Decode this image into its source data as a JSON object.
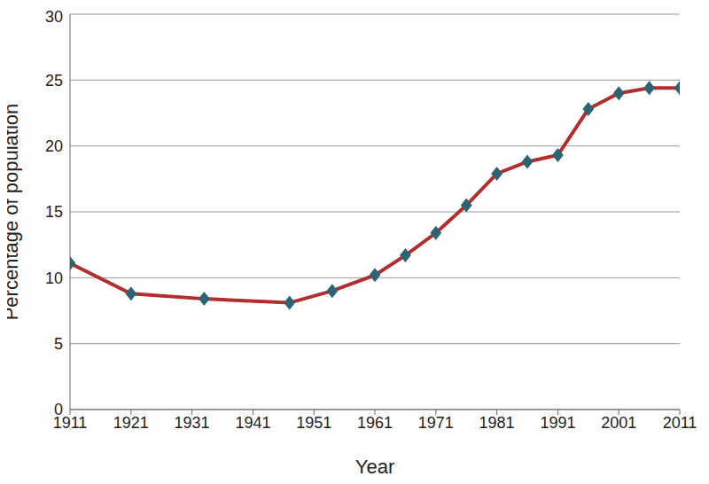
{
  "chart_data": {
    "type": "line",
    "x_label": "Year",
    "y_label": "Percentage of population",
    "x": [
      1911,
      1921,
      1933,
      1947,
      1954,
      1961,
      1966,
      1971,
      1976,
      1981,
      1986,
      1991,
      1996,
      2001,
      2006,
      2011
    ],
    "values": [
      11.1,
      8.8,
      8.4,
      8.1,
      9.0,
      10.2,
      11.7,
      13.4,
      15.5,
      17.9,
      18.8,
      19.3,
      22.8,
      24.0,
      24.4,
      24.4
    ],
    "color": "#b22d2d",
    "marker": "diamond",
    "marker_color": "#2d6373",
    "xlim": [
      1911,
      2011
    ],
    "xticks": [
      1911,
      1921,
      1931,
      1941,
      1951,
      1961,
      1971,
      1981,
      1991,
      2001,
      2011
    ],
    "ylim": [
      0,
      30
    ],
    "yticks": [
      0,
      5,
      10,
      15,
      20,
      25,
      30
    ],
    "grid": true
  }
}
